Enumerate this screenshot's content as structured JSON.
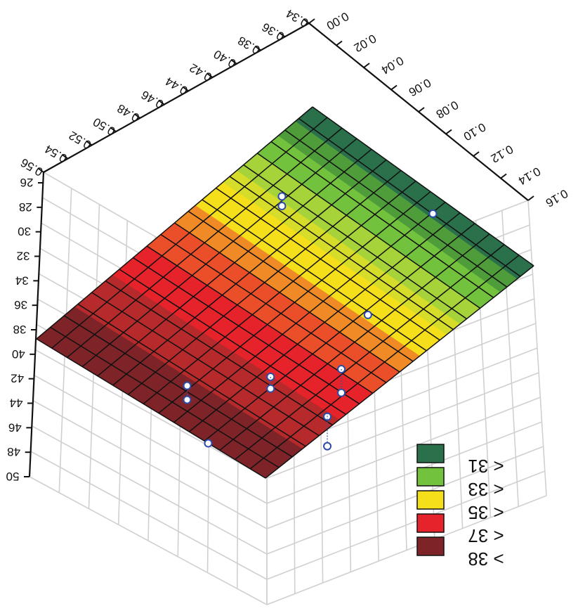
{
  "chart_data": {
    "type": "surface3d",
    "title": "",
    "mirrored": true,
    "axes": {
      "back_left": {
        "ticks": [
          "0.34",
          "0.36",
          "0.38",
          "0.40",
          "0.42",
          "0.44",
          "0.46",
          "0.48",
          "0.50",
          "0.52",
          "0.54",
          "0.56"
        ],
        "range": [
          0.34,
          0.56
        ]
      },
      "back_right": {
        "ticks": [
          "0.00",
          "0.02",
          "0.04",
          "0.06",
          "0.08",
          "0.10",
          "0.12",
          "0.14",
          "0.16"
        ],
        "range": [
          0.0,
          0.16
        ]
      },
      "vertical": {
        "ticks": [
          "26",
          "28",
          "30",
          "32",
          "34",
          "36",
          "38",
          "40",
          "42",
          "44",
          "46",
          "48",
          "50"
        ],
        "range": [
          26,
          50
        ]
      }
    },
    "legend": {
      "placement": "bottom-right",
      "entries": [
        {
          "label": "< 31",
          "color": "#2a704a"
        },
        {
          "label": "< 33",
          "color": "#72c23d"
        },
        {
          "label": "< 35",
          "color": "#f5df1b"
        },
        {
          "label": "< 37",
          "color": "#e6232a"
        },
        {
          "label": "> 38",
          "color": "#7e2428"
        }
      ]
    },
    "bands": [
      {
        "from": 0.0,
        "to": 0.06,
        "color": "#2a704a"
      },
      {
        "from": 0.06,
        "to": 0.12,
        "color": "#4f9c3a"
      },
      {
        "from": 0.12,
        "to": 0.2,
        "color": "#72c23d"
      },
      {
        "from": 0.2,
        "to": 0.28,
        "color": "#a6d33a"
      },
      {
        "from": 0.28,
        "to": 0.33,
        "color": "#d6dc2a"
      },
      {
        "from": 0.33,
        "to": 0.42,
        "color": "#f5df1b"
      },
      {
        "from": 0.42,
        "to": 0.5,
        "color": "#f08a26"
      },
      {
        "from": 0.5,
        "to": 0.6,
        "color": "#ea4f2a"
      },
      {
        "from": 0.6,
        "to": 0.72,
        "color": "#e6232a"
      },
      {
        "from": 0.72,
        "to": 0.86,
        "color": "#b72a2c"
      },
      {
        "from": 0.86,
        "to": 1.0,
        "color": "#7e2428"
      }
    ],
    "grid": true,
    "mesh": {
      "rows": 15,
      "cols": 20
    },
    "observations": [
      {
        "a": 0.55,
        "b": 0.12,
        "z_obs": 30.2,
        "z_fit": 30.0
      },
      {
        "a": 0.5,
        "b": 0.04,
        "z_obs": 31.7,
        "z_fit": 31.0
      },
      {
        "a": 0.5,
        "b": 0.04,
        "z_obs": 30.4,
        "z_fit": 31.0
      },
      {
        "a": 0.47,
        "b": 0.15,
        "z_obs": 35.4,
        "z_fit": 35.4
      },
      {
        "a": 0.4,
        "b": 0.14,
        "z_obs": 38.4,
        "z_fit": 38.4
      },
      {
        "a": 0.4,
        "b": 0.14,
        "z_obs": 40.0,
        "z_fit": 38.4
      },
      {
        "a": 0.36,
        "b": 0.11,
        "z_obs": 34.7,
        "z_fit": 36.0
      },
      {
        "a": 0.36,
        "b": 0.11,
        "z_obs": 36.6,
        "z_fit": 36.0
      },
      {
        "a": 0.43,
        "b": 0.17,
        "z_obs": 37.0,
        "z_fit": 37.0
      },
      {
        "a": 0.43,
        "b": 0.17,
        "z_obs": 40.2,
        "z_fit": 37.0
      },
      {
        "a": 0.33,
        "b": 0.15,
        "z_obs": 42.0,
        "z_fit": 42.0
      },
      {
        "a": 0.4,
        "b": 0.19,
        "z_obs": 44.0,
        "z_fit": 43.5
      },
      {
        "a": 0.4,
        "b": 0.19,
        "z_obs": 48.0,
        "z_fit": 43.5
      }
    ]
  }
}
